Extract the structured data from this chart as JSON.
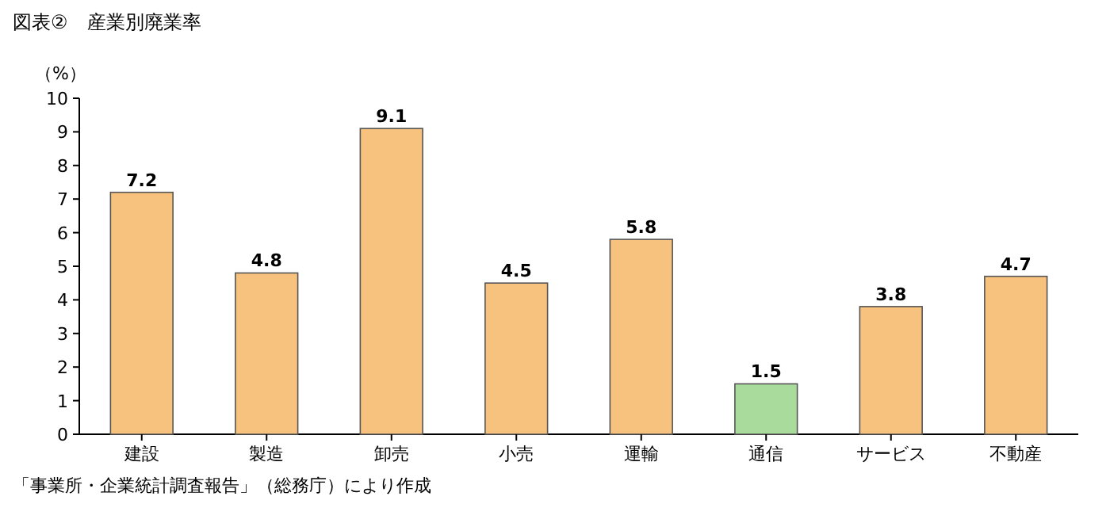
{
  "chart_data": {
    "type": "bar",
    "title": "図表②　産業別廃業率",
    "ylabel": "（%）",
    "categories": [
      "建設",
      "製造",
      "卸売",
      "小売",
      "運輸",
      "通信",
      "サービス",
      "不動産"
    ],
    "values": [
      7.2,
      4.8,
      9.1,
      4.5,
      5.8,
      1.5,
      3.8,
      4.7
    ],
    "colors": [
      "#f7c27e",
      "#f7c27e",
      "#f7c27e",
      "#f7c27e",
      "#f7c27e",
      "#a9dc9c",
      "#f7c27e",
      "#f7c27e"
    ],
    "ylim": [
      0,
      10
    ],
    "yticks": [
      0,
      1,
      2,
      3,
      4,
      5,
      6,
      7,
      8,
      9,
      10
    ],
    "data_labels": true,
    "annotations": [
      "「事業所・企業統計調査報告」（総務庁）により作成"
    ]
  }
}
